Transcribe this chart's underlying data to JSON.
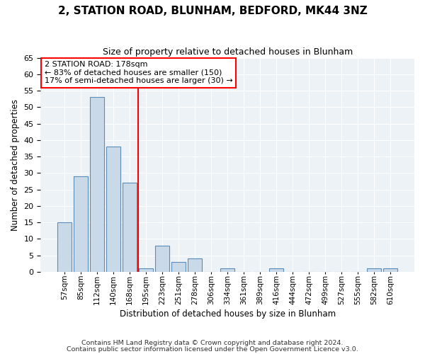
{
  "title": "2, STATION ROAD, BLUNHAM, BEDFORD, MK44 3NZ",
  "subtitle": "Size of property relative to detached houses in Blunham",
  "xlabel": "Distribution of detached houses by size in Blunham",
  "ylabel": "Number of detached properties",
  "bar_labels": [
    "57sqm",
    "85sqm",
    "112sqm",
    "140sqm",
    "168sqm",
    "195sqm",
    "223sqm",
    "251sqm",
    "278sqm",
    "306sqm",
    "334sqm",
    "361sqm",
    "389sqm",
    "416sqm",
    "444sqm",
    "472sqm",
    "499sqm",
    "527sqm",
    "555sqm",
    "582sqm",
    "610sqm"
  ],
  "bar_values": [
    15,
    29,
    53,
    38,
    27,
    1,
    8,
    3,
    4,
    0,
    1,
    0,
    0,
    1,
    0,
    0,
    0,
    0,
    0,
    1,
    1
  ],
  "bar_color": "#c9d9e8",
  "bar_edge_color": "#5b8db8",
  "vline_color": "red",
  "annotation_text": "2 STATION ROAD: 178sqm\n← 83% of detached houses are smaller (150)\n17% of semi-detached houses are larger (30) →",
  "ylim": [
    0,
    65
  ],
  "yticks": [
    0,
    5,
    10,
    15,
    20,
    25,
    30,
    35,
    40,
    45,
    50,
    55,
    60,
    65
  ],
  "footer1": "Contains HM Land Registry data © Crown copyright and database right 2024.",
  "footer2": "Contains public sector information licensed under the Open Government Licence v3.0.",
  "plot_bg_color": "#edf2f7",
  "grid_color": "#ffffff",
  "title_fontsize": 11,
  "subtitle_fontsize": 9
}
